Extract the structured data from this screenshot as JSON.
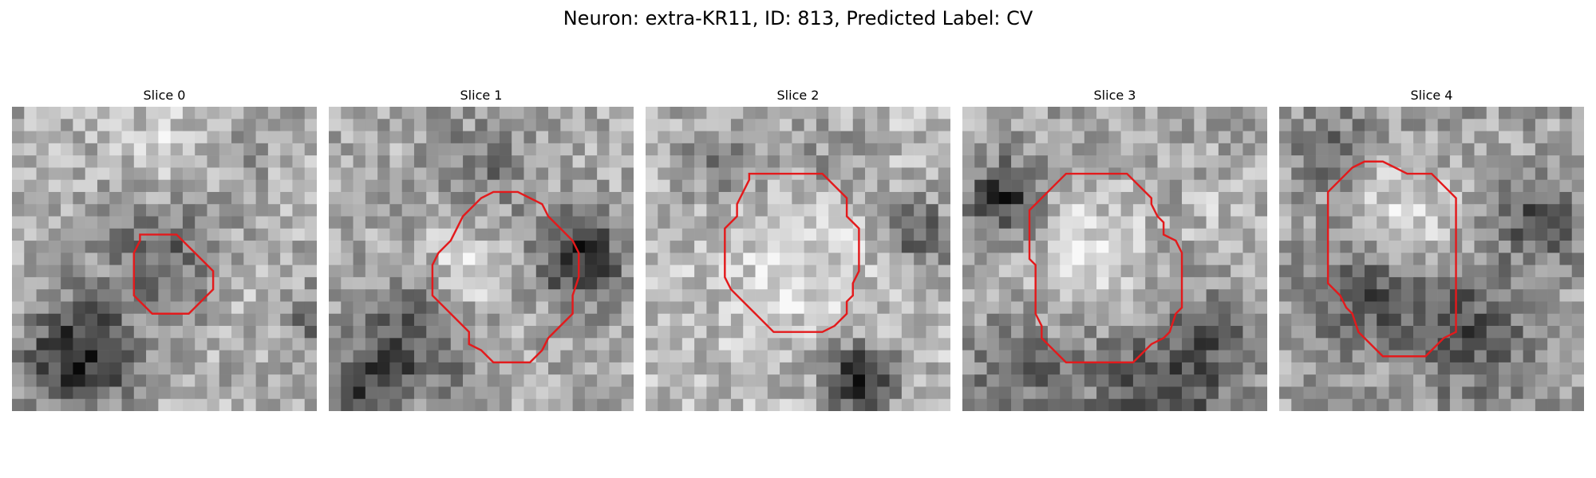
{
  "figure": {
    "suptitle": "Neuron: extra-KR11, ID: 813, Predicted Label: CV"
  },
  "panels": [
    {
      "title": "Slice 0",
      "grid_size": 25,
      "seed": 11,
      "base_gray": 175,
      "dark_spots": [
        [
          5,
          20,
          4.5,
          0.55
        ],
        [
          12,
          11,
          5,
          0.3
        ],
        [
          24,
          17,
          3,
          0.25
        ],
        [
          18,
          3,
          3,
          0.15
        ]
      ],
      "light_spots": [
        [
          13,
          4,
          5,
          0.15
        ],
        [
          20,
          15,
          3,
          0.1
        ]
      ],
      "outline_color": "#e31a1c",
      "contour": [
        [
          10.5,
          10.5
        ],
        [
          11.5,
          10.5
        ],
        [
          13.5,
          10.5
        ],
        [
          14.0,
          11.0
        ],
        [
          15.5,
          12.5
        ],
        [
          16.5,
          13.5
        ],
        [
          16.5,
          15.0
        ],
        [
          15.5,
          16.0
        ],
        [
          14.5,
          17.0
        ],
        [
          14.5,
          17.0
        ],
        [
          12.5,
          17.0
        ],
        [
          11.5,
          17.0
        ],
        [
          10.5,
          16.0
        ],
        [
          10.0,
          15.5
        ],
        [
          10.0,
          13.5
        ],
        [
          10.0,
          12.0
        ],
        [
          10.5,
          11.0
        ]
      ]
    },
    {
      "title": "Slice 1",
      "grid_size": 25,
      "seed": 23,
      "base_gray": 170,
      "dark_spots": [
        [
          20,
          12,
          3.5,
          0.5
        ],
        [
          6,
          19,
          5,
          0.35
        ],
        [
          12,
          5,
          4,
          0.2
        ],
        [
          2,
          23,
          3,
          0.3
        ]
      ],
      "light_spots": [
        [
          11,
          13,
          4,
          0.2
        ]
      ],
      "outline_color": "#e31a1c",
      "contour": [
        [
          13.5,
          7.0
        ],
        [
          15.5,
          7.0
        ],
        [
          16.5,
          7.5
        ],
        [
          17.5,
          8.0
        ],
        [
          18.0,
          9.0
        ],
        [
          19.0,
          10.0
        ],
        [
          20.0,
          11.0
        ],
        [
          20.5,
          12.0
        ],
        [
          20.5,
          14.0
        ],
        [
          20.0,
          15.5
        ],
        [
          20.0,
          17.0
        ],
        [
          19.0,
          18.0
        ],
        [
          18.0,
          19.0
        ],
        [
          17.5,
          20.0
        ],
        [
          16.5,
          21.0
        ],
        [
          13.5,
          21.0
        ],
        [
          12.5,
          20.0
        ],
        [
          11.5,
          19.5
        ],
        [
          11.5,
          18.5
        ],
        [
          10.5,
          17.5
        ],
        [
          9.5,
          16.5
        ],
        [
          8.5,
          15.5
        ],
        [
          8.5,
          13.0
        ],
        [
          9.0,
          12.0
        ],
        [
          10.0,
          11.0
        ],
        [
          10.5,
          10.0
        ],
        [
          11.0,
          9.0
        ],
        [
          12.0,
          8.0
        ],
        [
          12.5,
          7.5
        ]
      ]
    },
    {
      "title": "Slice 2",
      "grid_size": 25,
      "seed": 37,
      "base_gray": 185,
      "dark_spots": [
        [
          17,
          22,
          3,
          0.6
        ],
        [
          22,
          10,
          3,
          0.35
        ],
        [
          5,
          4,
          4,
          0.2
        ],
        [
          14,
          4,
          4,
          0.15
        ]
      ],
      "light_spots": [
        [
          12,
          12,
          6,
          0.15
        ]
      ],
      "outline_color": "#e31a1c",
      "contour": [
        [
          8.5,
          5.5
        ],
        [
          14.5,
          5.5
        ],
        [
          16.5,
          7.5
        ],
        [
          16.5,
          9.0
        ],
        [
          17.5,
          10.0
        ],
        [
          17.5,
          11.5
        ],
        [
          17.5,
          13.5
        ],
        [
          17.0,
          14.5
        ],
        [
          17.0,
          15.5
        ],
        [
          16.5,
          16.0
        ],
        [
          16.5,
          17.0
        ],
        [
          15.5,
          18.0
        ],
        [
          14.5,
          18.5
        ],
        [
          10.5,
          18.5
        ],
        [
          9.0,
          17.0
        ],
        [
          8.0,
          16.0
        ],
        [
          7.0,
          15.0
        ],
        [
          6.5,
          14.0
        ],
        [
          6.5,
          10.0
        ],
        [
          7.5,
          9.0
        ],
        [
          7.5,
          8.0
        ],
        [
          8.0,
          7.0
        ],
        [
          8.5,
          6.0
        ]
      ]
    },
    {
      "title": "Slice 3",
      "grid_size": 25,
      "seed": 53,
      "base_gray": 165,
      "dark_spots": [
        [
          3,
          7,
          3,
          0.45
        ],
        [
          16,
          23,
          6,
          0.35
        ],
        [
          20,
          18,
          3,
          0.2
        ],
        [
          4,
          21,
          4,
          0.25
        ]
      ],
      "light_spots": [
        [
          10,
          11,
          5,
          0.2
        ],
        [
          21,
          8,
          3,
          0.1
        ]
      ],
      "outline_color": "#e31a1c",
      "contour": [
        [
          8.5,
          5.5
        ],
        [
          11.5,
          5.5
        ],
        [
          13.5,
          5.5
        ],
        [
          15.5,
          7.5
        ],
        [
          15.5,
          8.0
        ],
        [
          16.0,
          9.0
        ],
        [
          16.5,
          9.5
        ],
        [
          16.5,
          10.5
        ],
        [
          17.5,
          11.0
        ],
        [
          18.0,
          12.0
        ],
        [
          18.0,
          16.5
        ],
        [
          17.5,
          17.0
        ],
        [
          17.0,
          18.5
        ],
        [
          16.5,
          19.0
        ],
        [
          15.5,
          19.5
        ],
        [
          15.0,
          20.0
        ],
        [
          14.0,
          21.0
        ],
        [
          13.5,
          21.0
        ],
        [
          8.5,
          21.0
        ],
        [
          7.5,
          20.0
        ],
        [
          6.5,
          19.0
        ],
        [
          6.5,
          18.0
        ],
        [
          6.0,
          17.0
        ],
        [
          6.0,
          16.0
        ],
        [
          6.0,
          13.0
        ],
        [
          5.5,
          12.5
        ],
        [
          5.5,
          10.5
        ],
        [
          5.5,
          8.5
        ],
        [
          6.5,
          7.5
        ],
        [
          7.5,
          6.5
        ]
      ]
    },
    {
      "title": "Slice 4",
      "grid_size": 25,
      "seed": 71,
      "base_gray": 160,
      "dark_spots": [
        [
          6,
          15,
          4,
          0.3
        ],
        [
          21,
          9,
          3,
          0.35
        ],
        [
          15,
          18,
          5,
          0.3
        ],
        [
          4,
          3,
          3,
          0.2
        ]
      ],
      "light_spots": [
        [
          10,
          8,
          4,
          0.25
        ]
      ],
      "outline_color": "#e31a1c",
      "contour": [
        [
          7.0,
          4.5
        ],
        [
          8.5,
          4.5
        ],
        [
          9.5,
          5.0
        ],
        [
          10.5,
          5.5
        ],
        [
          12.5,
          5.5
        ],
        [
          13.5,
          6.5
        ],
        [
          14.5,
          7.5
        ],
        [
          14.5,
          12.5
        ],
        [
          14.5,
          15.5
        ],
        [
          14.5,
          18.5
        ],
        [
          13.5,
          19.0
        ],
        [
          12.5,
          20.0
        ],
        [
          12.0,
          20.5
        ],
        [
          8.5,
          20.5
        ],
        [
          7.5,
          19.5
        ],
        [
          6.5,
          18.5
        ],
        [
          6.0,
          17.0
        ],
        [
          5.5,
          16.5
        ],
        [
          5.0,
          15.5
        ],
        [
          4.0,
          14.5
        ],
        [
          4.0,
          12.0
        ],
        [
          4.0,
          7.0
        ],
        [
          5.0,
          6.0
        ],
        [
          6.0,
          5.0
        ]
      ]
    }
  ]
}
